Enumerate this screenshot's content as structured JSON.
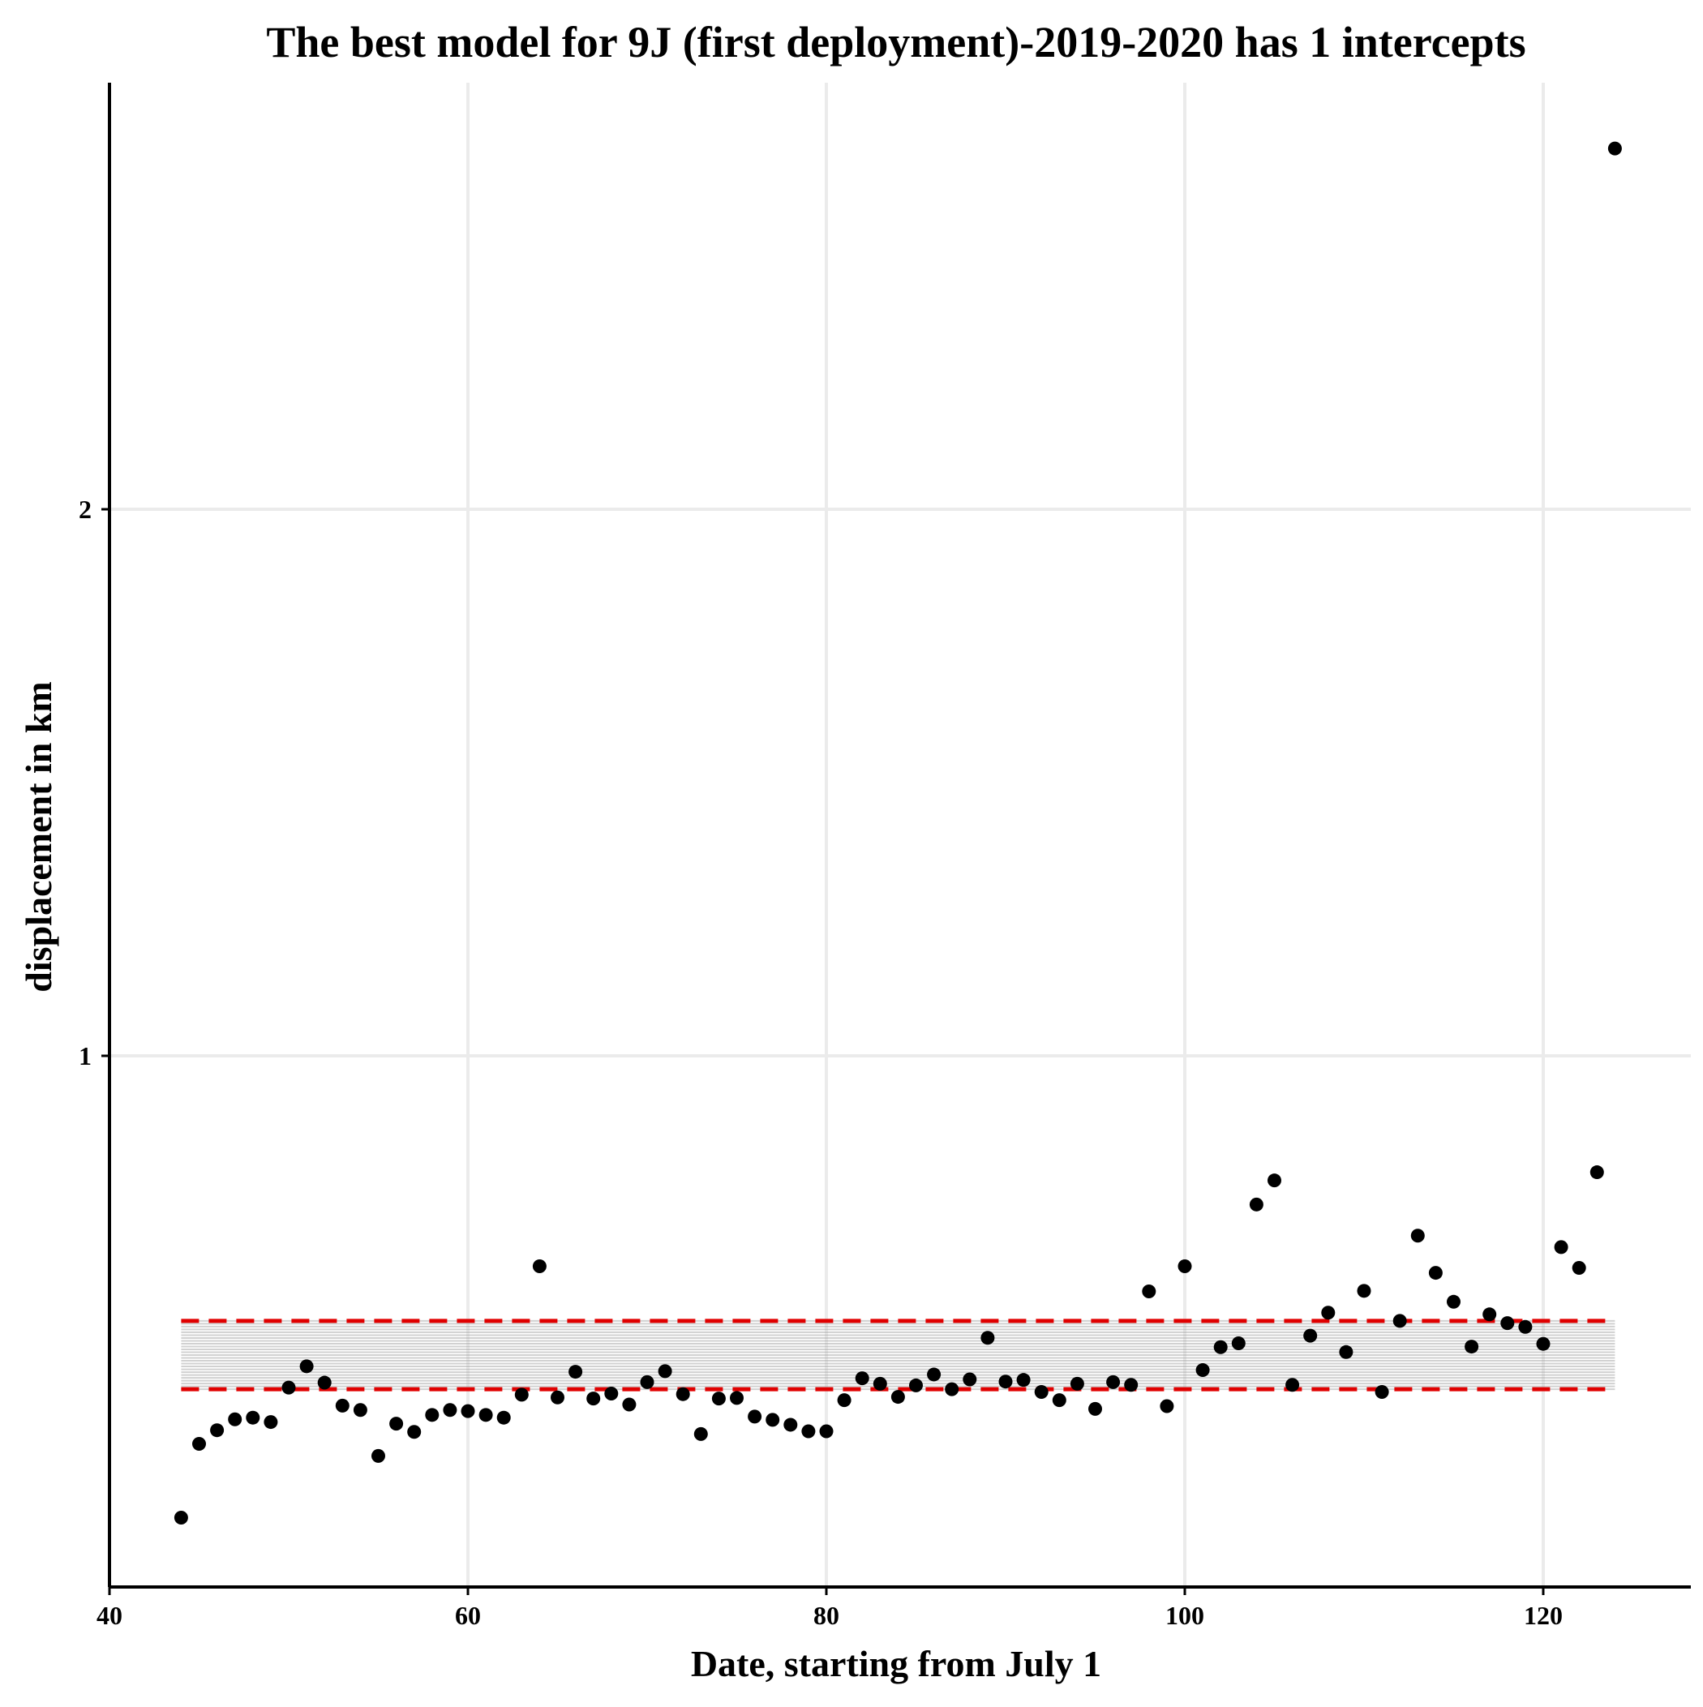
{
  "chart_data": {
    "type": "scatter",
    "title": "The best model for 9J (first deployment)-2019-2020 has 1 intercepts",
    "xlabel": "Date, starting from July 1",
    "ylabel": "displacement in km",
    "xlim": [
      40,
      128
    ],
    "ylim": [
      0.03,
      2.78
    ],
    "x_ticks": [
      40,
      60,
      80,
      100,
      120
    ],
    "y_ticks": [
      1,
      2
    ],
    "grid": true,
    "legend": "none",
    "point_color": "#000000",
    "band": {
      "x_range": [
        44,
        124
      ],
      "lower": 0.39,
      "upper": 0.515,
      "line_color": "#999999",
      "bound_color": "#e00000",
      "bound_style": "dashed"
    },
    "points": [
      [
        44,
        0.155
      ],
      [
        45,
        0.29
      ],
      [
        46,
        0.315
      ],
      [
        47,
        0.335
      ],
      [
        48,
        0.338
      ],
      [
        49,
        0.33
      ],
      [
        50,
        0.393
      ],
      [
        51,
        0.432
      ],
      [
        52,
        0.402
      ],
      [
        53,
        0.36
      ],
      [
        54,
        0.352
      ],
      [
        55,
        0.268
      ],
      [
        56,
        0.327
      ],
      [
        57,
        0.312
      ],
      [
        58,
        0.343
      ],
      [
        59,
        0.352
      ],
      [
        60,
        0.35
      ],
      [
        61,
        0.343
      ],
      [
        62,
        0.338
      ],
      [
        63,
        0.38
      ],
      [
        64,
        0.615
      ],
      [
        65,
        0.375
      ],
      [
        66,
        0.422
      ],
      [
        67,
        0.373
      ],
      [
        68,
        0.382
      ],
      [
        69,
        0.362
      ],
      [
        70,
        0.403
      ],
      [
        71,
        0.423
      ],
      [
        72,
        0.381
      ],
      [
        73,
        0.308
      ],
      [
        74,
        0.373
      ],
      [
        75,
        0.374
      ],
      [
        76,
        0.34
      ],
      [
        77,
        0.334
      ],
      [
        78,
        0.325
      ],
      [
        79,
        0.313
      ],
      [
        80,
        0.313
      ],
      [
        81,
        0.37
      ],
      [
        82,
        0.41
      ],
      [
        83,
        0.4
      ],
      [
        84,
        0.376
      ],
      [
        85,
        0.397
      ],
      [
        86,
        0.417
      ],
      [
        87,
        0.39
      ],
      [
        88,
        0.408
      ],
      [
        89,
        0.484
      ],
      [
        90,
        0.404
      ],
      [
        91,
        0.407
      ],
      [
        92,
        0.385
      ],
      [
        93,
        0.37
      ],
      [
        94,
        0.4
      ],
      [
        95,
        0.354
      ],
      [
        96,
        0.403
      ],
      [
        97,
        0.398
      ],
      [
        98,
        0.569
      ],
      [
        99,
        0.359
      ],
      [
        100,
        0.615
      ],
      [
        101,
        0.425
      ],
      [
        102,
        0.467
      ],
      [
        103,
        0.474
      ],
      [
        104,
        0.728
      ],
      [
        105,
        0.772
      ],
      [
        106,
        0.398
      ],
      [
        107,
        0.488
      ],
      [
        108,
        0.53
      ],
      [
        109,
        0.458
      ],
      [
        110,
        0.57
      ],
      [
        111,
        0.385
      ],
      [
        112,
        0.515
      ],
      [
        113,
        0.671
      ],
      [
        114,
        0.603
      ],
      [
        115,
        0.55
      ],
      [
        116,
        0.468
      ],
      [
        117,
        0.527
      ],
      [
        118,
        0.511
      ],
      [
        119,
        0.504
      ],
      [
        120,
        0.473
      ],
      [
        121,
        0.65
      ],
      [
        122,
        0.612
      ],
      [
        123,
        0.787
      ],
      [
        124,
        2.66
      ]
    ]
  }
}
